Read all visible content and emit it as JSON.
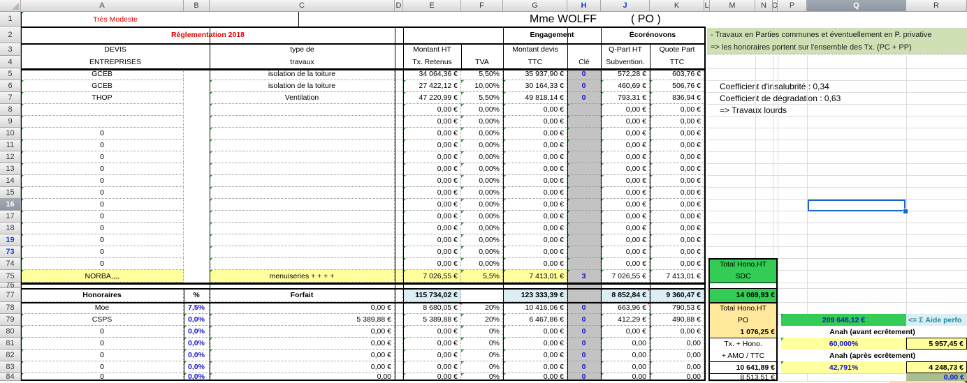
{
  "columns": {
    "letters": [
      "A",
      "B",
      "C",
      "D",
      "E",
      "F",
      "G",
      "H",
      "J",
      "K",
      "L",
      "M",
      "N",
      "O",
      "P",
      "Q",
      "R"
    ],
    "blue_letters": [
      "H",
      "J"
    ],
    "selected": "Q"
  },
  "rows": {
    "numbers": [
      1,
      2,
      3,
      4,
      5,
      6,
      7,
      8,
      9,
      10,
      11,
      12,
      13,
      14,
      15,
      16,
      17,
      18,
      19,
      73,
      74,
      75,
      76,
      77,
      78,
      79,
      80,
      81,
      82,
      83,
      84
    ],
    "blue_numbers": [
      19,
      73
    ],
    "selected": 16
  },
  "selection": {
    "cell": "Q16"
  },
  "title_row": {
    "owner_label": "Très Modeste",
    "name": "Mme WOLFF",
    "status": "( PO )"
  },
  "table": {
    "header": {
      "reglementation": "Réglementation 2018",
      "engagement": "Engagement",
      "ecorenovons": "Écorénovons",
      "devis1": "DEVIS",
      "devis2": "ENTREPRISES",
      "type1": "type de",
      "type2": "travaux",
      "montant1": "Montant HT",
      "montant2": "Tx. Retenus",
      "tva": "TVA",
      "devis_ttc1": "Montant devis",
      "devis_ttc2": "TTC",
      "cle": "Clé",
      "qpart1": "Q-Part HT",
      "qpart2": "Subvention.",
      "quote1": "Quote Part",
      "quote2": "TTC"
    },
    "rows": [
      {
        "n": 5,
        "A": "GCEB",
        "C": "isolation de la toiture",
        "E": "34 064,36 €",
        "F": "5,50%",
        "G": "35 937,90 €",
        "H": "0",
        "J": "572,28 €",
        "K": "603,76 €"
      },
      {
        "n": 6,
        "A": "GCEB",
        "C": "isolation de la toiture",
        "E": "27 422,12 €",
        "F": "10,00%",
        "G": "30 164,33 €",
        "H": "0",
        "J": "460,69 €",
        "K": "506,76 €"
      },
      {
        "n": 7,
        "A": "THOP",
        "C": "Ventilation",
        "E": "47 220,99 €",
        "F": "5,50%",
        "G": "49 818,14 €",
        "H": "0",
        "J": "793,31 €",
        "K": "836,94 €"
      },
      {
        "n": 8,
        "A": "",
        "C": "",
        "E": "0,00 €",
        "F": "0,00%",
        "G": "0,00 €",
        "H": "",
        "J": "0,00 €",
        "K": "0,00 €"
      },
      {
        "n": 9,
        "A": "",
        "C": "",
        "E": "0,00 €",
        "F": "0,00%",
        "G": "0,00 €",
        "H": "",
        "J": "0,00 €",
        "K": "0,00 €"
      },
      {
        "n": 10,
        "A": "0",
        "C": "",
        "E": "0,00 €",
        "F": "0,00%",
        "G": "0,00 €",
        "H": "",
        "J": "0,00 €",
        "K": "0,00 €"
      },
      {
        "n": 11,
        "A": "0",
        "C": "",
        "E": "0,00 €",
        "F": "0,00%",
        "G": "0,00 €",
        "H": "",
        "J": "0,00 €",
        "K": "0,00 €"
      },
      {
        "n": 12,
        "A": "0",
        "C": "",
        "E": "0,00 €",
        "F": "0,00%",
        "G": "0,00 €",
        "H": "",
        "J": "0,00 €",
        "K": "0,00 €"
      },
      {
        "n": 13,
        "A": "0",
        "C": "",
        "E": "0,00 €",
        "F": "0,00%",
        "G": "0,00 €",
        "H": "",
        "J": "0,00 €",
        "K": "0,00 €"
      },
      {
        "n": 14,
        "A": "0",
        "C": "",
        "E": "0,00 €",
        "F": "0,00%",
        "G": "0,00 €",
        "H": "",
        "J": "0,00 €",
        "K": "0,00 €"
      },
      {
        "n": 15,
        "A": "0",
        "C": "",
        "E": "0,00 €",
        "F": "0,00%",
        "G": "0,00 €",
        "H": "",
        "J": "0,00 €",
        "K": "0,00 €"
      },
      {
        "n": 16,
        "A": "0",
        "C": "",
        "E": "0,00 €",
        "F": "0,00%",
        "G": "0,00 €",
        "H": "",
        "J": "0,00 €",
        "K": "0,00 €"
      },
      {
        "n": 17,
        "A": "0",
        "C": "",
        "E": "0,00 €",
        "F": "0,00%",
        "G": "0,00 €",
        "H": "",
        "J": "0,00 €",
        "K": "0,00 €"
      },
      {
        "n": 18,
        "A": "0",
        "C": "",
        "E": "0,00 €",
        "F": "0,00%",
        "G": "0,00 €",
        "H": "",
        "J": "0,00 €",
        "K": "0,00 €"
      },
      {
        "n": 19,
        "A": "0",
        "C": "",
        "E": "0,00 €",
        "F": "0,00%",
        "G": "0,00 €",
        "H": "",
        "J": "0,00 €",
        "K": "0,00 €"
      },
      {
        "n": 73,
        "A": "0",
        "C": "",
        "E": "0,00 €",
        "F": "0,00%",
        "G": "0,00 €",
        "H": "",
        "J": "0,00 €",
        "K": "0,00 €"
      },
      {
        "n": 74,
        "A": "0",
        "C": "",
        "E": "0,00 €",
        "F": "0,00%",
        "G": "0,00 €",
        "H": "",
        "J": "0,00 €",
        "K": "0,00 €"
      },
      {
        "n": 75,
        "A": "NORBA,,,,",
        "C": "menuiseries +  +  +  +",
        "E": "7 026,55 €",
        "F": "5,5%",
        "G": "7 413,01 €",
        "H": "3",
        "J": "7 026,55 €",
        "K": "7 413,01 €",
        "yellow": true
      },
      {
        "n": 77,
        "A": "Honoraires",
        "B": "%",
        "C": "Forfait",
        "E": "115 734,02 €",
        "G": "123 333,39 €",
        "J": "8 852,84 €",
        "K": "9 360,47 €",
        "totals": true
      },
      {
        "n": 78,
        "A": "Moe",
        "B": "7,5%",
        "C": "0,00 €",
        "E": "8 680,05 €",
        "F": "20%",
        "G": "10 416,06 €",
        "H": "0",
        "J": "663,96 €",
        "K": "790,53 €"
      },
      {
        "n": 79,
        "A": "CSPS",
        "B": "0,0%",
        "C": "5 389,88 €",
        "E": "5 389,88 €",
        "F": "20%",
        "G": "6 467,86 €",
        "H": "0",
        "J": "412,29 €",
        "K": "490,88 €"
      },
      {
        "n": 80,
        "A": "0",
        "B": "0,0%",
        "C": "0,00 €",
        "E": "0,00 €",
        "F": "0%",
        "G": "0,00 €",
        "H": "0",
        "J": "0,00 €",
        "K": "0,00 €"
      },
      {
        "n": 81,
        "A": "0",
        "B": "0,0%",
        "C": "0,00 €",
        "E": "0,00 €",
        "F": "0%",
        "G": "0,00 €",
        "H": "0",
        "J": "0,00",
        "K": "0,00"
      },
      {
        "n": 82,
        "A": "0",
        "B": "0,0%",
        "C": "0,00 €",
        "E": "0,00 €",
        "F": "0%",
        "G": "0,00 €",
        "H": "0",
        "J": "0,00",
        "K": "0,00"
      },
      {
        "n": 83,
        "A": "0",
        "B": "0,0%",
        "C": "0,00 €",
        "E": "0,00 €",
        "F": "0%",
        "G": "0,00 €",
        "H": "0",
        "J": "0,00",
        "K": "0,00"
      },
      {
        "n": 84,
        "A": "0",
        "B": "0,0%",
        "C": "0,00",
        "E": "0,00 €",
        "F": "0%",
        "G": "0,00 €",
        "H": "0",
        "J": "0,00",
        "K": "0,00"
      }
    ],
    "red_comment_cells": [
      "J5",
      "J77",
      "E78",
      "J78",
      "M83",
      "M84"
    ]
  },
  "notes": {
    "line1": "- Travaux en Parties communes et éventuellement en P. privative",
    "line2": "=> les honoraires portent sur l'ensemble des Tx. (PC + PP)"
  },
  "coefficients": {
    "insalubrite": "Coefficient d'insalubrité : 0,34",
    "degradation": "Coefficient de dégradation : 0,63",
    "conclusion": "=> Travaux lourds"
  },
  "sdc_box": {
    "title1": "Total Hono.HT",
    "title2": "SDC",
    "total": "14 069,93 €"
  },
  "po_box": {
    "title1": "Total Hono.HT",
    "title2": "PO",
    "total": "1 076,25 €",
    "line1": "Tx. + Hono.",
    "line2": "+ AMO / TTC",
    "ttc_total": "10 641,89 €",
    "other_total": "8 513,51 €"
  },
  "aide": {
    "total": "209 646,12 €",
    "label": "<= Σ Aide perfo",
    "anah_before_label": "Anah (avant ecrêtement)",
    "anah_before_pct": "60,000%",
    "anah_before_amount": "5 957,45 €",
    "anah_after_label": "Anah (après ecrêtement)",
    "anah_after_pct": "42,791%",
    "anah_after_amount": "4 248,73 €",
    "bottom_value": "0,00 €"
  },
  "colors": {
    "selection_blue": "#1765cf",
    "bright_green": "#33cc55",
    "pale_yellow": "#ffff9e",
    "warm_yellow": "#ffe99c",
    "light_blue_total": "#daeef3",
    "note_band_green": "#cfe0b4",
    "olive": "#a8bd90",
    "cle_gray": "#c3c3c3",
    "value_blue": "#1414cc",
    "alert_red": "#e00000"
  }
}
